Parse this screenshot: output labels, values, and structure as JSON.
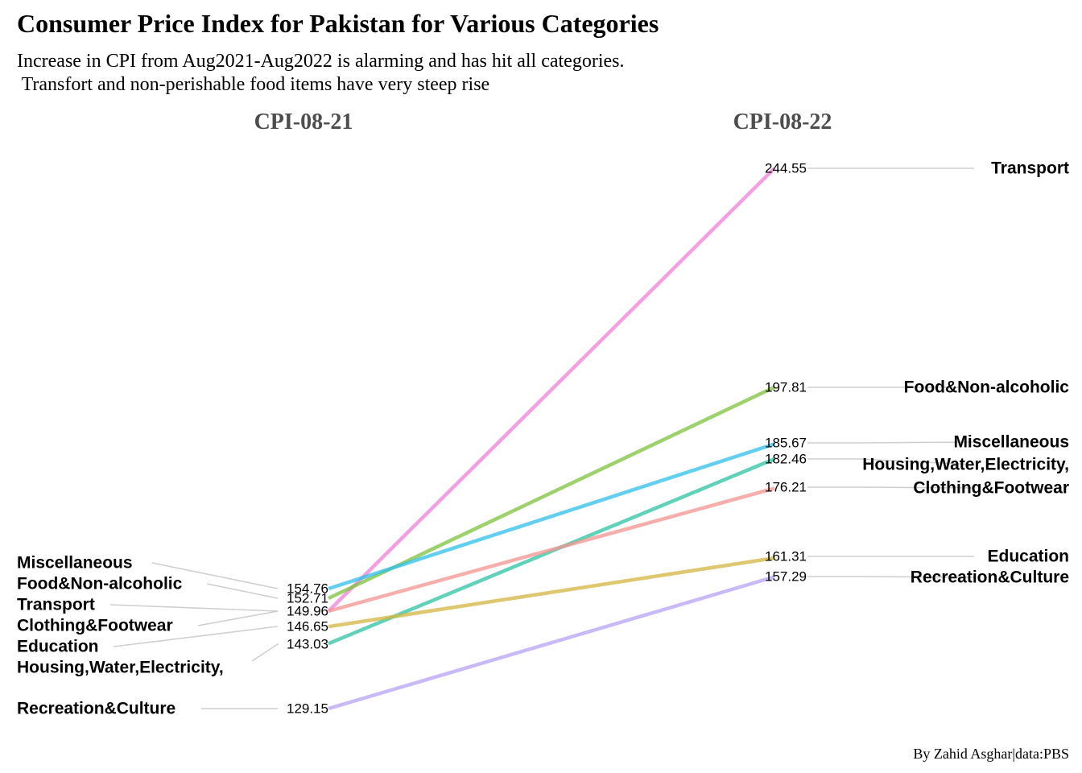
{
  "chart_data": {
    "type": "line",
    "title": "Consumer Price Index for Pakistan for Various Categories",
    "subtitle_lines": [
      "Increase in CPI from Aug2021-Aug2022 is alarming and has hit all categories.",
      " Transfort and non-perishable food items have very steep rise"
    ],
    "x": [
      "CPI-08-21",
      "CPI-08-22"
    ],
    "series": [
      {
        "name": "Transport",
        "values": [
          149.96,
          244.55
        ],
        "color": "#f07fd8"
      },
      {
        "name": "Food&Non-alcoholic",
        "values": [
          152.71,
          197.81
        ],
        "color": "#7cc23c"
      },
      {
        "name": "Miscellaneous",
        "values": [
          154.76,
          185.67
        ],
        "color": "#2fc0ec"
      },
      {
        "name": "Housing,Water,Electricity,",
        "values": [
          143.03,
          182.46
        ],
        "color": "#2bc3a4"
      },
      {
        "name": "Clothing&Footwear",
        "values": [
          149.96,
          176.21
        ],
        "color": "#f59490"
      },
      {
        "name": "Education",
        "values": [
          146.65,
          161.31
        ],
        "color": "#d4b53e"
      },
      {
        "name": "Recreation&Culture",
        "values": [
          129.15,
          157.29
        ],
        "color": "#b8a4f5"
      }
    ],
    "left_value_labels": [
      "154.76",
      "152.71",
      "149.96",
      "146.65",
      "143.03",
      "129.15"
    ],
    "left_category_order": [
      "Miscellaneous",
      "Food&Non-alcoholic",
      "Transport",
      "Clothing&Footwear",
      "Education",
      "Housing,Water,Electricity,",
      "Recreation&Culture"
    ],
    "grid": false,
    "legend": "none",
    "caption": "By Zahid Asghar|data:PBS"
  }
}
